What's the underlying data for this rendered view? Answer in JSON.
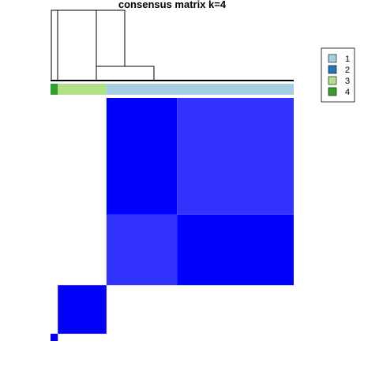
{
  "chart_data": {
    "type": "heatmap",
    "title": "consensus matrix k=4",
    "n_samples": 100,
    "sample_groups": [
      {
        "group": "4",
        "count": 3
      },
      {
        "group": "3",
        "count": 20
      },
      {
        "group": "1",
        "count": 77
      }
    ],
    "color_scale": {
      "low": "#FFFFFF",
      "high": "#0000FF",
      "range": [
        0,
        1
      ]
    },
    "blocks": [
      {
        "rows": "group 4",
        "cols": "group 4",
        "value": 1.0
      },
      {
        "rows": "group 3",
        "cols": "group 3",
        "value": 1.0
      },
      {
        "rows": "group 1 (subset A, 29)",
        "cols": "group 1 (subset A, 29)",
        "value": 0.8
      },
      {
        "rows": "group 1 (subset A, 29)",
        "cols": "group 1 (subset B, 48)",
        "value": 1.0
      },
      {
        "rows": "group 1 (subset B, 48)",
        "cols": "group 1 (subset A, 29)",
        "value": 1.0
      },
      {
        "rows": "group 1 (subset B, 48)",
        "cols": "group 1 (subset B, 48)",
        "value": 0.8
      }
    ],
    "dendrogram": "top",
    "legend": {
      "placement": "top-right",
      "entries": [
        {
          "label": "1",
          "color": "#A6CEE3"
        },
        {
          "label": "2",
          "color": "#1F78B4"
        },
        {
          "label": "3",
          "color": "#B2DF8A"
        },
        {
          "label": "4",
          "color": "#33A02C"
        }
      ]
    }
  }
}
